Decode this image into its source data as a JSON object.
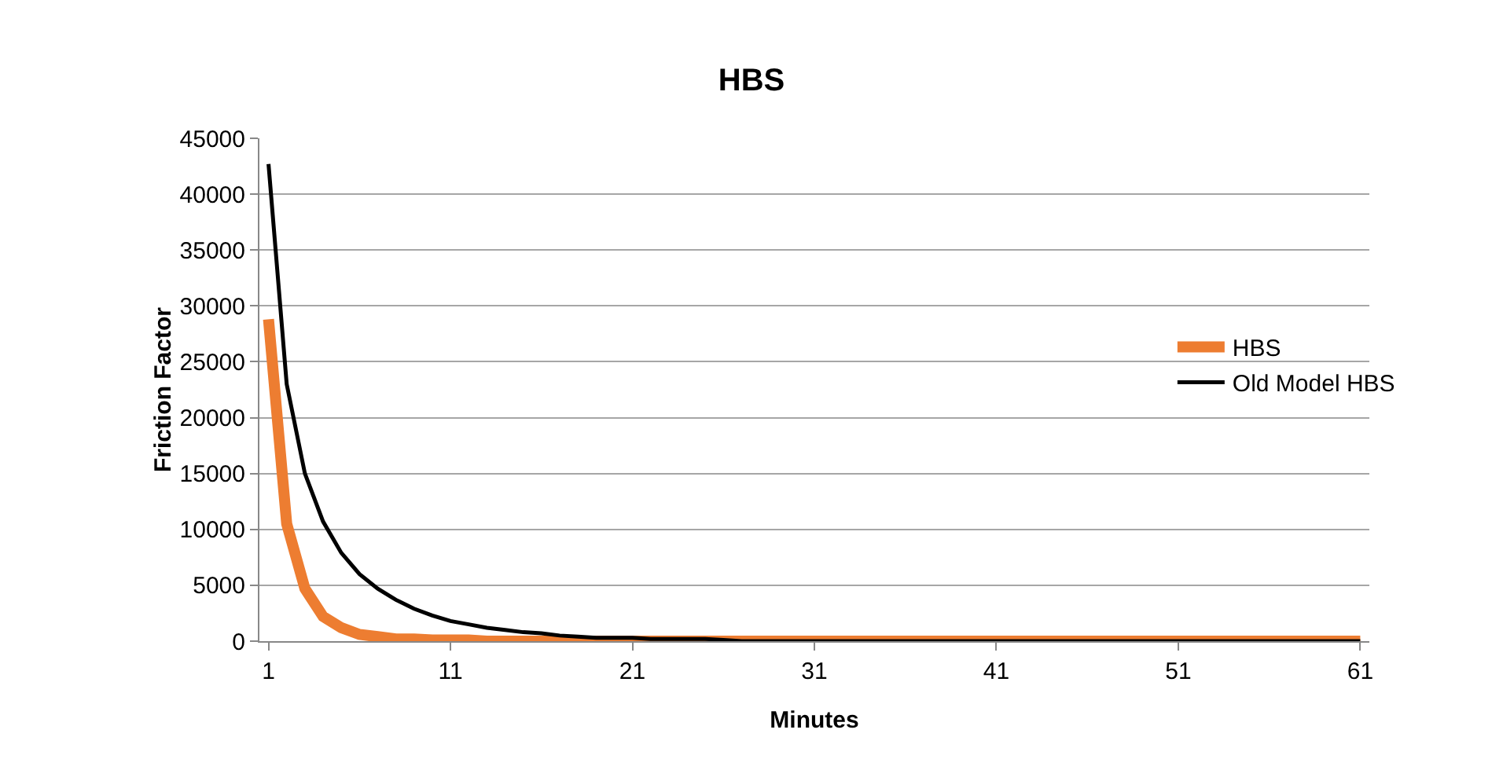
{
  "chart_data": {
    "type": "line",
    "title": "HBS",
    "xlabel": "Minutes",
    "ylabel": "Friction Factor",
    "x": [
      1,
      2,
      3,
      4,
      5,
      6,
      7,
      8,
      9,
      10,
      11,
      12,
      13,
      14,
      15,
      16,
      17,
      18,
      19,
      20,
      21,
      22,
      23,
      24,
      25,
      26,
      27,
      28,
      29,
      30,
      31,
      32,
      33,
      34,
      35,
      36,
      37,
      38,
      39,
      40,
      41,
      42,
      43,
      44,
      45,
      46,
      47,
      48,
      49,
      50,
      51,
      52,
      53,
      54,
      55,
      56,
      57,
      58,
      59,
      60,
      61
    ],
    "series": [
      {
        "name": "HBS",
        "color": "#ed7d31",
        "values": [
          28800,
          10500,
          4700,
          2200,
          1200,
          600,
          400,
          200,
          200,
          100,
          100,
          100,
          0,
          0,
          0,
          0,
          0,
          0,
          0,
          0,
          0,
          0,
          0,
          0,
          0,
          0,
          0,
          0,
          0,
          0,
          0,
          0,
          0,
          0,
          0,
          0,
          0,
          0,
          0,
          0,
          0,
          0,
          0,
          0,
          0,
          0,
          0,
          0,
          0,
          0,
          0,
          0,
          0,
          0,
          0,
          0,
          0,
          0,
          0,
          0,
          0
        ]
      },
      {
        "name": "Old Model HBS",
        "color": "#000000",
        "values": [
          42700,
          23000,
          15000,
          10700,
          7900,
          6000,
          4700,
          3700,
          2900,
          2300,
          1800,
          1500,
          1200,
          1000,
          800,
          700,
          500,
          400,
          300,
          300,
          300,
          200,
          200,
          200,
          200,
          100,
          0,
          0,
          0,
          0,
          0,
          0,
          0,
          0,
          0,
          0,
          0,
          0,
          0,
          0,
          0,
          0,
          0,
          0,
          0,
          0,
          0,
          0,
          0,
          0,
          0,
          0,
          0,
          0,
          0,
          0,
          0,
          0,
          0,
          0,
          0
        ]
      }
    ],
    "xlim": [
      0.5,
      61.5
    ],
    "xticks": [
      1,
      11,
      21,
      31,
      41,
      51,
      61
    ],
    "ylim": [
      0,
      45000
    ],
    "yticks": [
      0,
      5000,
      10000,
      15000,
      20000,
      25000,
      30000,
      35000,
      40000,
      45000
    ],
    "grid": "y",
    "legend": "right",
    "marker": "none",
    "line_style": "solid"
  }
}
